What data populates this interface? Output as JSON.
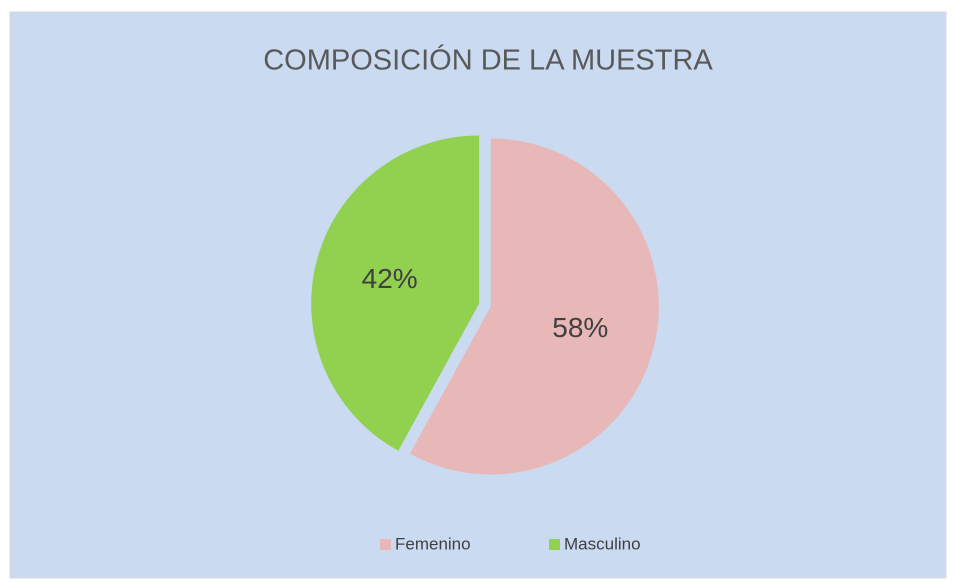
{
  "chart_data": {
    "type": "pie",
    "title": "COMPOSICIÓN DE LA MUESTRA",
    "categories": [
      "Femenino",
      "Masculino"
    ],
    "values": [
      58,
      42
    ],
    "value_labels": [
      "58%",
      "42%"
    ],
    "colors": [
      "#e8b7b7",
      "#92d050"
    ],
    "legend": "bottom"
  }
}
